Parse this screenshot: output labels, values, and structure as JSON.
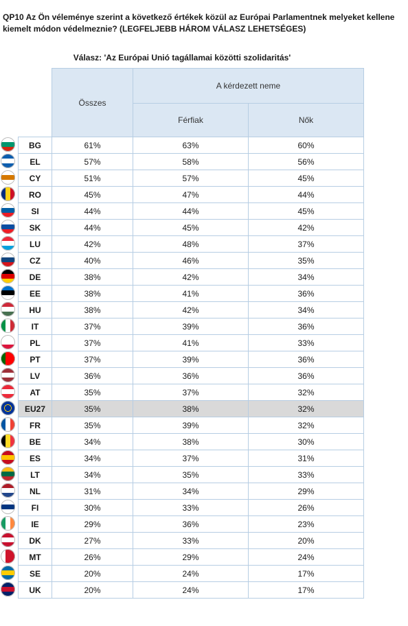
{
  "question": "QP10 Az Ön véleménye szerint a következő értékek közül az Európai Parlamentnek melyeket kellene kiemelt módon védelmeznie? (LEGFELJEBB HÁROM VÁLASZ LEHETSÉGES)",
  "subtitle": "Válasz: 'Az Európai Unió tagállamai közötti szolidaritás'",
  "headers": {
    "total": "Összes",
    "gender_group": "A kérdezett neme",
    "male": "Férfiak",
    "female": "Nők"
  },
  "rows": [
    {
      "code": "BG",
      "total": "61%",
      "male": "63%",
      "female": "60%",
      "flag": [
        "#ffffff",
        "#00966e",
        "#d62612"
      ]
    },
    {
      "code": "EL",
      "total": "57%",
      "male": "58%",
      "female": "56%",
      "flag": [
        "#0d5eaf",
        "#ffffff",
        "#0d5eaf"
      ]
    },
    {
      "code": "CY",
      "total": "51%",
      "male": "57%",
      "female": "45%",
      "flag": [
        "#ffffff",
        "#d57800",
        "#ffffff"
      ]
    },
    {
      "code": "RO",
      "total": "45%",
      "male": "47%",
      "female": "44%",
      "flag": [
        "#002b7f",
        "#fcd116",
        "#ce1126"
      ],
      "vertical": true
    },
    {
      "code": "SI",
      "total": "44%",
      "male": "44%",
      "female": "45%",
      "flag": [
        "#ffffff",
        "#005da4",
        "#ed1c24"
      ]
    },
    {
      "code": "SK",
      "total": "44%",
      "male": "45%",
      "female": "42%",
      "flag": [
        "#ffffff",
        "#0b4ea2",
        "#ee1c25"
      ]
    },
    {
      "code": "LU",
      "total": "42%",
      "male": "48%",
      "female": "37%",
      "flag": [
        "#ed2939",
        "#ffffff",
        "#00a1de"
      ]
    },
    {
      "code": "CZ",
      "total": "40%",
      "male": "46%",
      "female": "35%",
      "flag": [
        "#ffffff",
        "#11457e",
        "#d7141a"
      ]
    },
    {
      "code": "DE",
      "total": "38%",
      "male": "42%",
      "female": "34%",
      "flag": [
        "#000000",
        "#dd0000",
        "#ffce00"
      ]
    },
    {
      "code": "EE",
      "total": "38%",
      "male": "41%",
      "female": "36%",
      "flag": [
        "#0072ce",
        "#000000",
        "#ffffff"
      ]
    },
    {
      "code": "HU",
      "total": "38%",
      "male": "42%",
      "female": "34%",
      "flag": [
        "#ce2939",
        "#ffffff",
        "#477050"
      ]
    },
    {
      "code": "IT",
      "total": "37%",
      "male": "39%",
      "female": "36%",
      "flag": [
        "#009246",
        "#ffffff",
        "#ce2b37"
      ],
      "vertical": true
    },
    {
      "code": "PL",
      "total": "37%",
      "male": "41%",
      "female": "33%",
      "flag": [
        "#ffffff",
        "#ffffff",
        "#dc143c"
      ]
    },
    {
      "code": "PT",
      "total": "37%",
      "male": "39%",
      "female": "36%",
      "flag": [
        "#006600",
        "#ff0000",
        "#ff0000"
      ],
      "vertical": true
    },
    {
      "code": "LV",
      "total": "36%",
      "male": "36%",
      "female": "36%",
      "flag": [
        "#9e3039",
        "#ffffff",
        "#9e3039"
      ]
    },
    {
      "code": "AT",
      "total": "35%",
      "male": "37%",
      "female": "32%",
      "flag": [
        "#ed2939",
        "#ffffff",
        "#ed2939"
      ]
    },
    {
      "code": "EU27",
      "total": "35%",
      "male": "38%",
      "female": "32%",
      "flag": [
        "#003399",
        "#003399",
        "#003399"
      ],
      "highlight": true
    },
    {
      "code": "FR",
      "total": "35%",
      "male": "39%",
      "female": "32%",
      "flag": [
        "#0055a4",
        "#ffffff",
        "#ef4135"
      ],
      "vertical": true
    },
    {
      "code": "BE",
      "total": "34%",
      "male": "38%",
      "female": "30%",
      "flag": [
        "#000000",
        "#fdda24",
        "#ef3340"
      ],
      "vertical": true
    },
    {
      "code": "ES",
      "total": "34%",
      "male": "37%",
      "female": "31%",
      "flag": [
        "#c60b1e",
        "#ffc400",
        "#c60b1e"
      ]
    },
    {
      "code": "LT",
      "total": "34%",
      "male": "35%",
      "female": "33%",
      "flag": [
        "#fdb913",
        "#006a44",
        "#c1272d"
      ]
    },
    {
      "code": "NL",
      "total": "31%",
      "male": "34%",
      "female": "29%",
      "flag": [
        "#ae1c28",
        "#ffffff",
        "#21468b"
      ]
    },
    {
      "code": "FI",
      "total": "30%",
      "male": "33%",
      "female": "26%",
      "flag": [
        "#ffffff",
        "#003580",
        "#ffffff"
      ]
    },
    {
      "code": "IE",
      "total": "29%",
      "male": "36%",
      "female": "23%",
      "flag": [
        "#169b62",
        "#ffffff",
        "#ff883e"
      ],
      "vertical": true
    },
    {
      "code": "DK",
      "total": "27%",
      "male": "33%",
      "female": "20%",
      "flag": [
        "#c8102e",
        "#ffffff",
        "#c8102e"
      ]
    },
    {
      "code": "MT",
      "total": "26%",
      "male": "29%",
      "female": "24%",
      "flag": [
        "#ffffff",
        "#cf142b",
        "#cf142b"
      ],
      "vertical": true
    },
    {
      "code": "SE",
      "total": "20%",
      "male": "24%",
      "female": "17%",
      "flag": [
        "#006aa7",
        "#fecc00",
        "#006aa7"
      ]
    },
    {
      "code": "UK",
      "total": "20%",
      "male": "24%",
      "female": "17%",
      "flag": [
        "#012169",
        "#c8102e",
        "#012169"
      ]
    }
  ]
}
